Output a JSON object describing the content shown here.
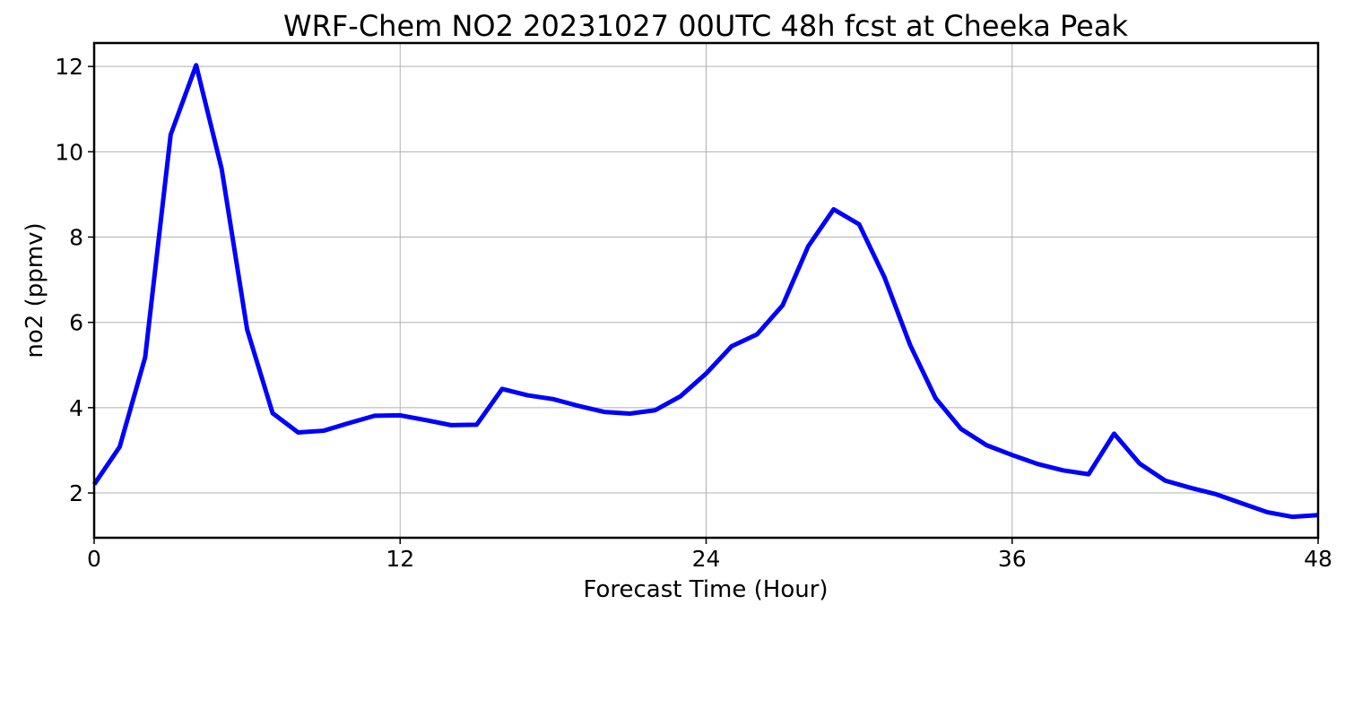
{
  "chart_data": {
    "type": "line",
    "title": "WRF-Chem NO2  20231027 00UTC 48h fcst at Cheeka Peak",
    "xlabel": "Forecast Time (Hour)",
    "ylabel": "no2  (ppmv)",
    "xlim": [
      0,
      48
    ],
    "ylim": [
      0.95,
      12.55
    ],
    "xticks": [
      0,
      12,
      24,
      36,
      48
    ],
    "xtick_labels": [
      "0",
      "12",
      "24",
      "36",
      "48"
    ],
    "yticks": [
      2,
      4,
      6,
      8,
      10,
      12
    ],
    "ytick_labels": [
      "2",
      "4",
      "6",
      "8",
      "10",
      "12"
    ],
    "grid": true,
    "series": [
      {
        "color": "#0000ff",
        "x": [
          0,
          1,
          2,
          3,
          4,
          5,
          6,
          7,
          8,
          9,
          10,
          11,
          12,
          13,
          14,
          15,
          16,
          17,
          18,
          19,
          20,
          21,
          22,
          23,
          24,
          25,
          26,
          27,
          28,
          29,
          30,
          31,
          32,
          33,
          34,
          35,
          36,
          37,
          38,
          39,
          40,
          41,
          42,
          43,
          44,
          45,
          46,
          47,
          48
        ],
        "y": [
          2.2,
          3.08,
          5.18,
          10.4,
          12.03,
          9.6,
          5.83,
          3.87,
          3.42,
          3.46,
          3.64,
          3.81,
          3.82,
          3.71,
          3.59,
          3.6,
          4.44,
          4.29,
          4.2,
          4.04,
          3.9,
          3.86,
          3.94,
          4.27,
          4.8,
          5.44,
          5.72,
          6.4,
          7.78,
          8.65,
          8.3,
          7.05,
          5.47,
          4.22,
          3.5,
          3.12,
          2.89,
          2.68,
          2.53,
          2.44,
          3.39,
          2.69,
          2.29,
          2.12,
          1.97,
          1.76,
          1.55,
          1.44,
          1.48
        ]
      }
    ]
  }
}
